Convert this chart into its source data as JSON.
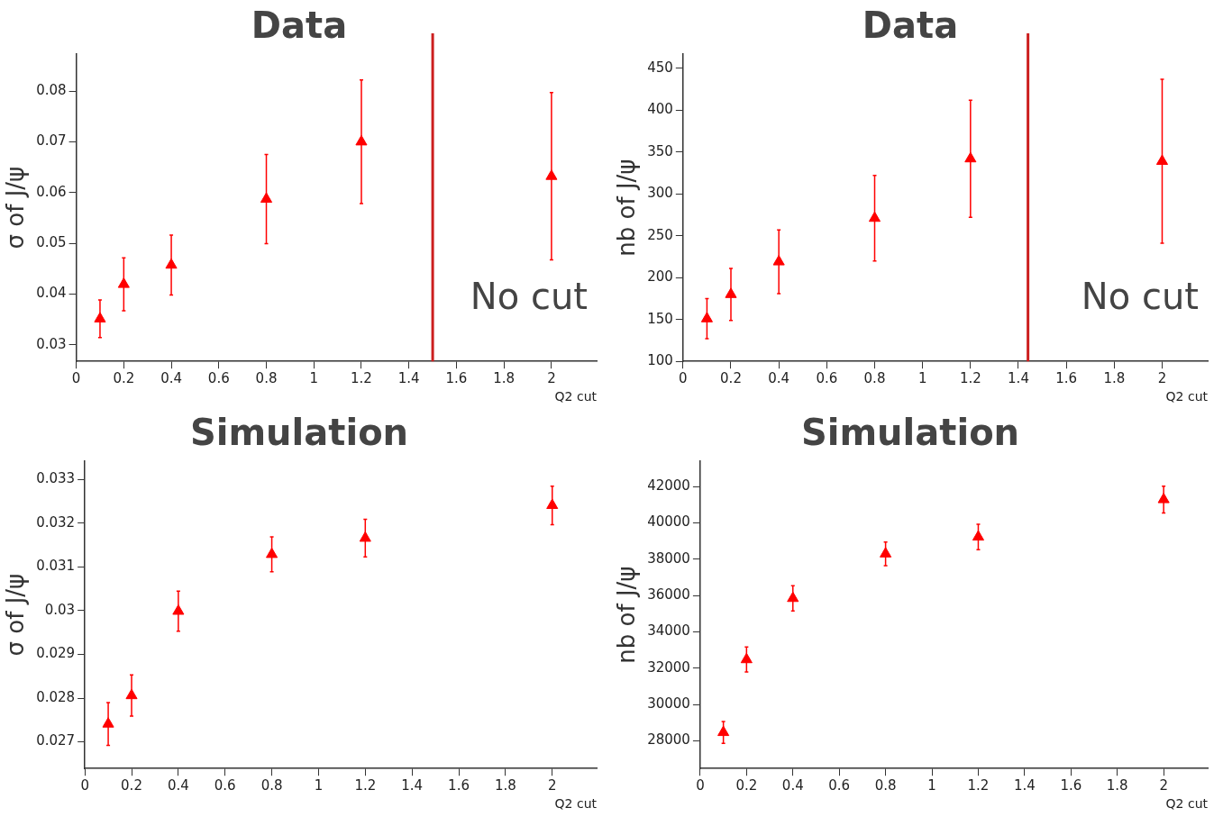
{
  "chart_data": [
    {
      "type": "scatter",
      "title": "Data",
      "xlabel": "Q2 cut",
      "ylabel": "σ of J/ψ",
      "marker": "triangle",
      "x": [
        0.1,
        0.2,
        0.4,
        0.8,
        1.2,
        2.0
      ],
      "xlim": [
        0,
        2.19
      ],
      "xticks": [
        0,
        0.2,
        0.4,
        0.6,
        0.8,
        1,
        1.2,
        1.4,
        1.6,
        1.8,
        2
      ],
      "ylim": [
        0.0267,
        0.0873
      ],
      "yticks": [
        0.03,
        0.04,
        0.05,
        0.06,
        0.07,
        0.08
      ],
      "series": [
        {
          "color": "#ff0000",
          "values": [
            0.0351,
            0.0419,
            0.0457,
            0.0587,
            0.07,
            0.0632
          ],
          "errors": [
            0.0037,
            0.0052,
            0.0059,
            0.0088,
            0.0122,
            0.0165
          ]
        }
      ],
      "ref_lines": [
        {
          "axis": "x",
          "value": 1.5,
          "label": "No cut",
          "color": "#cc1f1f"
        }
      ]
    },
    {
      "type": "scatter",
      "title": "Data",
      "xlabel": "Q2 cut",
      "ylabel": "nb of J/ψ",
      "marker": "triangle",
      "x": [
        0.1,
        0.2,
        0.4,
        0.8,
        1.2,
        2.0
      ],
      "xlim": [
        0,
        2.19
      ],
      "xticks": [
        0,
        0.2,
        0.4,
        0.6,
        0.8,
        1,
        1.2,
        1.4,
        1.6,
        1.8,
        2
      ],
      "ylim": [
        100,
        467
      ],
      "yticks": [
        100,
        150,
        200,
        250,
        300,
        350,
        400,
        450
      ],
      "series": [
        {
          "color": "#ff0000",
          "values": [
            151,
            180,
            219,
            271,
            342,
            339
          ],
          "errors": [
            24,
            31,
            38,
            51,
            70,
            98
          ]
        }
      ],
      "ref_lines": [
        {
          "axis": "x",
          "value": 1.44,
          "label": "No cut",
          "color": "#cc1f1f"
        }
      ]
    },
    {
      "type": "scatter",
      "title": "Simulation",
      "xlabel": "Q2 cut",
      "ylabel": "σ of J/ψ",
      "marker": "triangle",
      "x": [
        0.1,
        0.2,
        0.4,
        0.8,
        1.2,
        2.0
      ],
      "xlim": [
        0,
        2.19
      ],
      "xticks": [
        0,
        0.2,
        0.4,
        0.6,
        0.8,
        1,
        1.2,
        1.4,
        1.6,
        1.8,
        2
      ],
      "ylim": [
        0.02639,
        0.03342
      ],
      "yticks": [
        0.027,
        0.028,
        0.029,
        0.03,
        0.031,
        0.032,
        0.033
      ],
      "series": [
        {
          "color": "#ff0000",
          "values": [
            0.02741,
            0.02806,
            0.02999,
            0.03129,
            0.03166,
            0.03241
          ],
          "errors": [
            0.00049,
            0.00047,
            0.00046,
            0.0004,
            0.00043,
            0.00044
          ]
        }
      ]
    },
    {
      "type": "scatter",
      "title": "Simulation",
      "xlabel": "Q2 cut",
      "ylabel": "nb of J/ψ",
      "marker": "triangle",
      "x": [
        0.1,
        0.2,
        0.4,
        0.8,
        1.2,
        2.0
      ],
      "xlim": [
        0,
        2.19
      ],
      "xticks": [
        0,
        0.2,
        0.4,
        0.6,
        0.8,
        1,
        1.2,
        1.4,
        1.6,
        1.8,
        2
      ],
      "ylim": [
        26470,
        43390
      ],
      "yticks": [
        28000,
        30000,
        32000,
        34000,
        36000,
        38000,
        40000,
        42000
      ],
      "series": [
        {
          "color": "#ff0000",
          "values": [
            28460,
            32470,
            35840,
            38290,
            39220,
            41280
          ],
          "errors": [
            600,
            690,
            690,
            650,
            700,
            740
          ]
        }
      ]
    }
  ]
}
